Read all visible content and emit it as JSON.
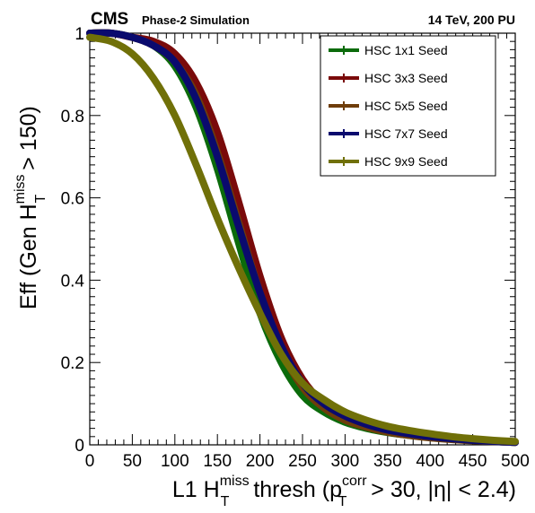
{
  "header": {
    "experiment": "CMS",
    "experiment_sub": "Phase-2 Simulation",
    "conditions": "14 TeV, 200 PU"
  },
  "axes": {
    "y_label_main": "Eff (Gen H",
    "y_label_sup": "miss",
    "y_label_sub": "T",
    "y_label_end": " > 150)",
    "x_label_main": "L1 H",
    "x_label_sup": "miss",
    "x_label_sub": "T",
    "x_label_mid": " thresh (p",
    "x_label_sup2": "corr",
    "x_label_sub2": "T",
    "x_label_end": " > 30, |η| < 2.4)"
  },
  "chart_data": {
    "type": "line",
    "xlim": [
      0,
      500
    ],
    "ylim": [
      0,
      1.0
    ],
    "x_ticks": [
      "0",
      "50",
      "100",
      "150",
      "200",
      "250",
      "300",
      "350",
      "400",
      "450",
      "500"
    ],
    "y_ticks": [
      "0",
      "0.2",
      "0.4",
      "0.6",
      "0.8",
      "1"
    ],
    "legend_position": "top-right",
    "x": [
      0,
      25,
      50,
      75,
      100,
      125,
      150,
      175,
      200,
      225,
      250,
      275,
      300,
      325,
      350,
      375,
      400,
      425,
      450,
      475,
      500
    ],
    "series": [
      {
        "name": "HSC 1x1 Seed",
        "color": "#0b6b0b",
        "values": [
          1.0,
          1.0,
          0.99,
          0.97,
          0.92,
          0.82,
          0.67,
          0.49,
          0.32,
          0.2,
          0.12,
          0.08,
          0.055,
          0.04,
          0.03,
          0.023,
          0.018,
          0.014,
          0.011,
          0.008,
          0.006
        ]
      },
      {
        "name": "HSC 3x3 Seed",
        "color": "#7a0a0a",
        "values": [
          1.0,
          1.0,
          0.99,
          0.98,
          0.95,
          0.88,
          0.76,
          0.59,
          0.41,
          0.26,
          0.16,
          0.1,
          0.065,
          0.045,
          0.032,
          0.024,
          0.018,
          0.014,
          0.011,
          0.008,
          0.006
        ]
      },
      {
        "name": "HSC 5x5 Seed",
        "color": "#6e3d0a",
        "values": [
          1.0,
          1.0,
          0.99,
          0.97,
          0.93,
          0.85,
          0.71,
          0.54,
          0.37,
          0.23,
          0.14,
          0.09,
          0.06,
          0.043,
          0.031,
          0.023,
          0.017,
          0.013,
          0.01,
          0.008,
          0.006
        ]
      },
      {
        "name": "HSC 7x7 Seed",
        "color": "#0a0a6e",
        "values": [
          1.0,
          1.0,
          0.99,
          0.97,
          0.93,
          0.84,
          0.7,
          0.53,
          0.37,
          0.24,
          0.15,
          0.1,
          0.07,
          0.05,
          0.036,
          0.027,
          0.02,
          0.015,
          0.011,
          0.008,
          0.006
        ]
      },
      {
        "name": "HSC 9x9 Seed",
        "color": "#707008",
        "values": [
          0.99,
          0.98,
          0.95,
          0.89,
          0.8,
          0.68,
          0.55,
          0.43,
          0.32,
          0.22,
          0.15,
          0.11,
          0.08,
          0.06,
          0.045,
          0.035,
          0.027,
          0.02,
          0.015,
          0.011,
          0.008
        ]
      }
    ]
  }
}
